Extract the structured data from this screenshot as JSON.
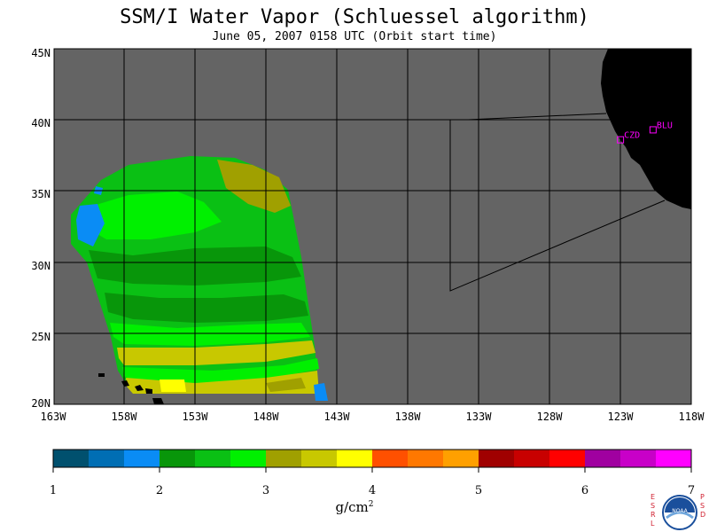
{
  "title": "SSM/I Water Vapor (Schluessel algorithm)",
  "subtitle": "June 05, 2007  0158 UTC  (Orbit start time)",
  "map": {
    "lat_labels": [
      "45N",
      "40N",
      "35N",
      "30N",
      "25N",
      "20N"
    ],
    "lon_labels": [
      "163W",
      "158W",
      "153W",
      "148W",
      "143W",
      "138W",
      "133W",
      "128W",
      "123W",
      "118W"
    ],
    "stations": [
      {
        "id": "CZD",
        "lon": -123.0,
        "lat": 38.6
      },
      {
        "id": "BLU",
        "lon": -120.7,
        "lat": 39.3
      }
    ],
    "colors": {
      "ocean_nodata": "#646464",
      "land": "#000000",
      "grid": "#000000",
      "station": "#ff00ff"
    }
  },
  "legend": {
    "ticks": [
      "1",
      "2",
      "3",
      "4",
      "5",
      "6",
      "7"
    ],
    "units_base": "g/cm",
    "units_exp": "2",
    "colors": [
      "#00506e",
      "#006eb4",
      "#0a8cf5",
      "#08960a",
      "#0ac014",
      "#00f000",
      "#a0a000",
      "#c8c800",
      "#ffff00",
      "#ff5000",
      "#ff7800",
      "#ffa000",
      "#a00000",
      "#c80000",
      "#ff0000",
      "#a000a0",
      "#c800c8",
      "#ff00ff"
    ]
  },
  "logo": {
    "left_text": "ESRL",
    "right_text": "PSD",
    "badge_text": "NOAA"
  }
}
